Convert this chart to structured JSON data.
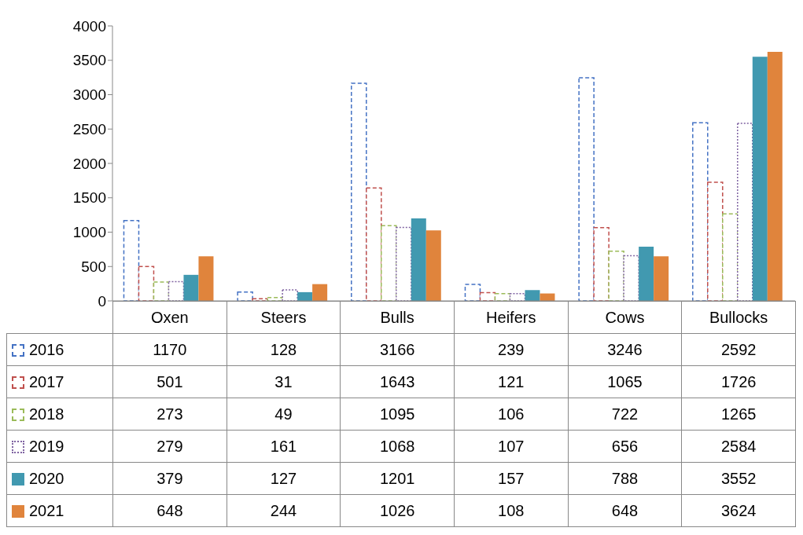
{
  "chart_data": {
    "type": "bar",
    "categories": [
      "Oxen",
      "Steers",
      "Bulls",
      "Heifers",
      "Cows",
      "Bullocks"
    ],
    "series": [
      {
        "name": "2016",
        "color": "#4472c4",
        "line_style": "dashed",
        "values": [
          1170,
          128,
          3166,
          239,
          3246,
          2592
        ]
      },
      {
        "name": "2017",
        "color": "#c0504d",
        "line_style": "dashed",
        "values": [
          501,
          31,
          1643,
          121,
          1065,
          1726
        ]
      },
      {
        "name": "2018",
        "color": "#9bbb59",
        "line_style": "dashed",
        "values": [
          273,
          49,
          1095,
          106,
          722,
          1265
        ]
      },
      {
        "name": "2019",
        "color": "#8064a2",
        "line_style": "dotted",
        "values": [
          279,
          161,
          1068,
          107,
          656,
          2584
        ]
      },
      {
        "name": "2020",
        "color": "#4199b0",
        "values": [
          379,
          127,
          1201,
          157,
          788,
          3552
        ]
      },
      {
        "name": "2021",
        "color": "#e0843c",
        "values": [
          648,
          244,
          1026,
          108,
          648,
          3624
        ]
      }
    ],
    "ylim": [
      0,
      4000
    ],
    "yticks": [
      0,
      500,
      1000,
      1500,
      2000,
      2500,
      3000,
      3500,
      4000
    ],
    "legend": "bottom left",
    "data_labels": true
  }
}
